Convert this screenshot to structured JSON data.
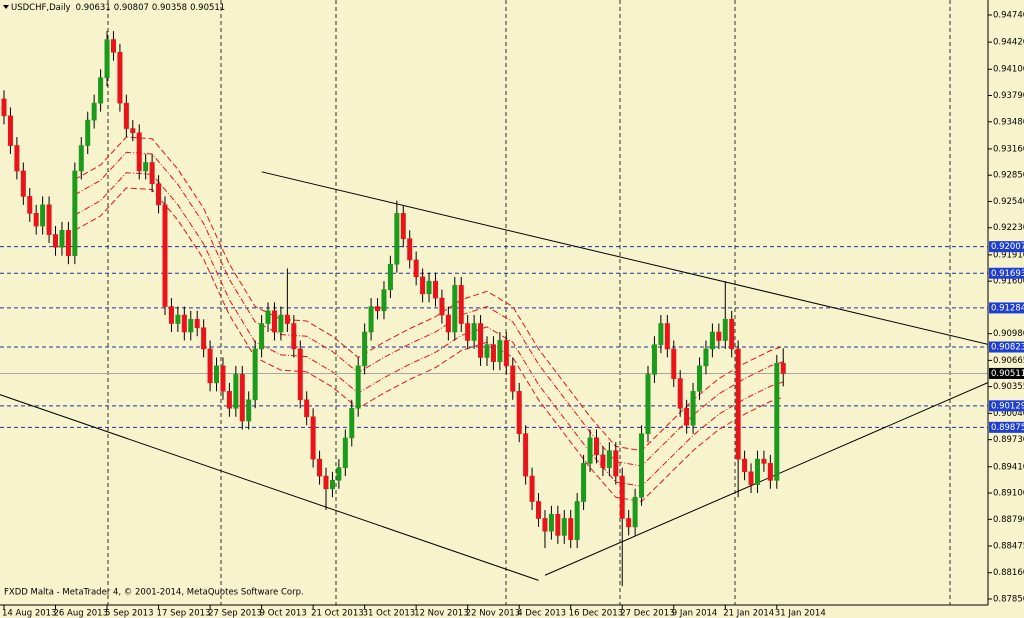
{
  "chart_data": {
    "type": "candlestick",
    "symbol": "USDCHF,Daily",
    "footer": "FXDD Malta - MetaTrader 4, © 2001-2014, MetaQuotes Software Corp.",
    "categories": [
      "14 Aug 2013",
      null,
      null,
      null,
      null,
      null,
      null,
      null,
      "26 Aug 2013",
      null,
      null,
      null,
      null,
      null,
      null,
      null,
      "5 Sep 2013",
      null,
      null,
      null,
      null,
      null,
      null,
      null,
      "17 Sep 2013",
      null,
      null,
      null,
      null,
      null,
      null,
      null,
      "27 Sep 2013",
      null,
      null,
      null,
      null,
      null,
      null,
      null,
      "9 Oct 2013",
      null,
      null,
      null,
      null,
      null,
      null,
      null,
      "21 Oct 2013",
      null,
      null,
      null,
      null,
      null,
      null,
      null,
      "31 Oct 2013",
      null,
      null,
      null,
      null,
      null,
      null,
      null,
      "12 Nov 2013",
      null,
      null,
      null,
      null,
      null,
      null,
      null,
      "22 Nov 2013",
      null,
      null,
      null,
      null,
      null,
      null,
      null,
      "4 Dec 2013",
      null,
      null,
      null,
      null,
      null,
      null,
      null,
      "16 Dec 2013",
      null,
      null,
      null,
      null,
      null,
      null,
      null,
      "27 Dec 2013",
      null,
      null,
      null,
      null,
      null,
      null,
      null,
      "9 Jan 2014",
      null,
      null,
      null,
      null,
      null,
      null,
      null,
      "21 Jan 2014",
      null,
      null,
      null,
      null,
      null,
      null,
      null,
      "31 Jan 2014",
      null
    ],
    "open": [
      0.9375,
      0.9355,
      0.932,
      0.929,
      0.926,
      0.924,
      0.9225,
      0.925,
      0.9215,
      0.92,
      0.922,
      0.919,
      0.929,
      0.932,
      0.935,
      0.937,
      0.94,
      0.9445,
      0.943,
      0.937,
      0.934,
      0.9335,
      0.929,
      0.93,
      0.9275,
      0.925,
      0.913,
      0.911,
      0.912,
      0.91,
      0.9115,
      0.9105,
      0.908,
      0.904,
      0.906,
      0.903,
      0.901,
      0.905,
      0.8995,
      0.902,
      0.908,
      0.911,
      0.9125,
      0.91,
      0.912,
      0.911,
      0.908,
      0.902,
      0.9,
      0.895,
      0.893,
      0.8915,
      0.8925,
      0.894,
      0.8975,
      0.901,
      0.906,
      0.91,
      0.913,
      0.9125,
      0.915,
      0.918,
      0.924,
      0.921,
      0.9185,
      0.9165,
      0.9145,
      0.916,
      0.914,
      0.912,
      0.91,
      0.9155,
      0.911,
      0.909,
      0.911,
      0.907,
      0.9085,
      0.9065,
      0.909,
      0.906,
      0.903,
      0.898,
      0.893,
      0.89,
      0.888,
      0.8865,
      0.8885,
      0.886,
      0.888,
      0.8855,
      0.89,
      0.8945,
      0.8975,
      0.8955,
      0.894,
      0.896,
      0.893,
      0.888,
      0.887,
      0.8905,
      0.898,
      0.905,
      0.9085,
      0.911,
      0.908,
      0.9045,
      0.901,
      0.899,
      0.903,
      0.906,
      0.908,
      0.91,
      0.909,
      0.9115,
      0.908,
      0.895,
      0.8935,
      0.892,
      0.895,
      0.8945,
      0.8925,
      0.90631
    ],
    "high": [
      0.9385,
      0.9365,
      0.933,
      0.93,
      0.927,
      0.925,
      0.926,
      0.926,
      0.9225,
      0.923,
      0.923,
      0.93,
      0.933,
      0.936,
      0.938,
      0.941,
      0.9455,
      0.9455,
      0.944,
      0.938,
      0.935,
      0.9345,
      0.931,
      0.931,
      0.9285,
      0.926,
      0.914,
      0.913,
      0.913,
      0.9125,
      0.9125,
      0.9115,
      0.909,
      0.907,
      0.907,
      0.904,
      0.906,
      0.906,
      0.903,
      0.909,
      0.912,
      0.9135,
      0.9135,
      0.913,
      0.9175,
      0.912,
      0.909,
      0.903,
      0.901,
      0.896,
      0.894,
      0.8935,
      0.895,
      0.8985,
      0.902,
      0.907,
      0.911,
      0.914,
      0.914,
      0.916,
      0.919,
      0.9255,
      0.925,
      0.922,
      0.9195,
      0.9175,
      0.917,
      0.917,
      0.915,
      0.913,
      0.9165,
      0.9165,
      0.912,
      0.912,
      0.912,
      0.9095,
      0.9095,
      0.91,
      0.91,
      0.907,
      0.904,
      0.899,
      0.894,
      0.891,
      0.889,
      0.8895,
      0.8895,
      0.889,
      0.889,
      0.891,
      0.8955,
      0.8985,
      0.8985,
      0.8965,
      0.897,
      0.897,
      0.894,
      0.889,
      0.8915,
      0.899,
      0.906,
      0.9095,
      0.912,
      0.912,
      0.909,
      0.9055,
      0.902,
      0.904,
      0.907,
      0.909,
      0.911,
      0.911,
      0.916,
      0.9125,
      0.909,
      0.896,
      0.8945,
      0.896,
      0.896,
      0.8955,
      0.9073,
      0.90807
    ],
    "low": [
      0.9345,
      0.931,
      0.928,
      0.925,
      0.923,
      0.9215,
      0.9215,
      0.9205,
      0.919,
      0.919,
      0.918,
      0.918,
      0.928,
      0.931,
      0.934,
      0.936,
      0.939,
      0.942,
      0.936,
      0.933,
      0.9325,
      0.928,
      0.928,
      0.9265,
      0.924,
      0.912,
      0.91,
      0.91,
      0.909,
      0.909,
      0.9095,
      0.907,
      0.903,
      0.903,
      0.902,
      0.9,
      0.9,
      0.8985,
      0.8985,
      0.901,
      0.907,
      0.91,
      0.909,
      0.909,
      0.91,
      0.907,
      0.901,
      0.899,
      0.894,
      0.892,
      0.889,
      0.8905,
      0.8915,
      0.893,
      0.8965,
      0.9,
      0.905,
      0.909,
      0.9115,
      0.9115,
      0.914,
      0.917,
      0.92,
      0.9175,
      0.9155,
      0.9135,
      0.9135,
      0.913,
      0.911,
      0.909,
      0.909,
      0.91,
      0.908,
      0.908,
      0.906,
      0.906,
      0.9055,
      0.9055,
      0.905,
      0.902,
      0.897,
      0.892,
      0.889,
      0.887,
      0.8845,
      0.8855,
      0.885,
      0.885,
      0.8845,
      0.8845,
      0.889,
      0.8935,
      0.8945,
      0.893,
      0.893,
      0.892,
      0.88,
      0.886,
      0.886,
      0.8895,
      0.897,
      0.904,
      0.9075,
      0.907,
      0.9035,
      0.9,
      0.898,
      0.898,
      0.902,
      0.905,
      0.907,
      0.908,
      0.908,
      0.907,
      0.8905,
      0.8925,
      0.891,
      0.891,
      0.8935,
      0.8915,
      0.8915,
      0.90358
    ],
    "close": [
      0.9355,
      0.932,
      0.929,
      0.926,
      0.924,
      0.9225,
      0.925,
      0.9215,
      0.92,
      0.922,
      0.919,
      0.929,
      0.932,
      0.935,
      0.937,
      0.94,
      0.9445,
      0.943,
      0.937,
      0.934,
      0.9335,
      0.929,
      0.93,
      0.9275,
      0.925,
      0.913,
      0.911,
      0.912,
      0.91,
      0.9115,
      0.9105,
      0.908,
      0.904,
      0.906,
      0.903,
      0.901,
      0.905,
      0.8995,
      0.902,
      0.908,
      0.911,
      0.9125,
      0.91,
      0.912,
      0.911,
      0.908,
      0.902,
      0.9,
      0.895,
      0.893,
      0.8915,
      0.8925,
      0.894,
      0.8975,
      0.901,
      0.906,
      0.91,
      0.913,
      0.9125,
      0.915,
      0.918,
      0.924,
      0.921,
      0.9185,
      0.9165,
      0.9145,
      0.916,
      0.914,
      0.912,
      0.91,
      0.9155,
      0.911,
      0.909,
      0.911,
      0.907,
      0.9085,
      0.9065,
      0.909,
      0.906,
      0.903,
      0.898,
      0.893,
      0.89,
      0.888,
      0.8865,
      0.8885,
      0.886,
      0.888,
      0.8855,
      0.89,
      0.8945,
      0.8975,
      0.8955,
      0.894,
      0.896,
      0.893,
      0.888,
      0.887,
      0.8905,
      0.898,
      0.905,
      0.9085,
      0.911,
      0.908,
      0.9045,
      0.901,
      0.899,
      0.903,
      0.906,
      0.908,
      0.91,
      0.909,
      0.9115,
      0.908,
      0.895,
      0.8935,
      0.892,
      0.895,
      0.8945,
      0.8925,
      0.9063,
      0.90511
    ],
    "up_color": "#1c9a1c",
    "down_color": "#e8141a",
    "ylim": [
      0.87779,
      0.94917
    ],
    "yticks": [
      {
        "value": 0.9474,
        "label": "0.94740"
      },
      {
        "value": 0.9442,
        "label": "0.94420"
      },
      {
        "value": 0.941,
        "label": "0.94100"
      },
      {
        "value": 0.9379,
        "label": "0.93790"
      },
      {
        "value": 0.9348,
        "label": "0.93480"
      },
      {
        "value": 0.9316,
        "label": "0.93160"
      },
      {
        "value": 0.9285,
        "label": "0.92850"
      },
      {
        "value": 0.9254,
        "label": "0.92540"
      },
      {
        "value": 0.9223,
        "label": "0.92230"
      },
      {
        "value": 0.9191,
        "label": "0.91910"
      },
      {
        "value": 0.916,
        "label": "0.91600"
      },
      {
        "value": 0.9098,
        "label": "0.90980"
      },
      0.90665,
      {
        "value": 0.90355,
        "label": "0.90355"
      },
      {
        "value": 0.9004,
        "label": "0.90040"
      },
      {
        "value": 0.8973,
        "label": "0.89730"
      },
      {
        "value": 0.8941,
        "label": "0.89410"
      },
      {
        "value": 0.891,
        "label": "0.89100"
      },
      {
        "value": 0.8879,
        "label": "0.88790"
      },
      0.88475,
      {
        "value": 0.8816,
        "label": "0.88160"
      },
      {
        "value": 0.8785,
        "label": "0.87850"
      }
    ],
    "levels": [
      0.92007,
      0.91693,
      0.91284,
      0.90823,
      0.90129,
      0.89875
    ],
    "level_color": "#1e2f9e",
    "level_label_color": "#1f3fd0",
    "envelopes": {
      "color": "#e8141a",
      "x": [
        11,
        15,
        19,
        23,
        27,
        31,
        35,
        39,
        43,
        47,
        51,
        55,
        59,
        63,
        67,
        71,
        75,
        79,
        83,
        87,
        91,
        95,
        99,
        103,
        107,
        111,
        115,
        119,
        121
      ],
      "lines": [
        [
          0.928,
          0.9297,
          0.933,
          0.9328,
          0.9292,
          0.9246,
          0.918,
          0.913,
          0.9115,
          0.9113,
          0.9095,
          0.907,
          0.9088,
          0.9104,
          0.9118,
          0.9138,
          0.9148,
          0.913,
          0.908,
          0.904,
          0.9,
          0.8965,
          0.896,
          0.899,
          0.902,
          0.9045,
          0.9063,
          0.9078,
          0.9083
        ],
        [
          0.9262,
          0.9279,
          0.9312,
          0.931,
          0.9274,
          0.9228,
          0.9162,
          0.9112,
          0.9097,
          0.9095,
          0.9077,
          0.9052,
          0.907,
          0.9086,
          0.91,
          0.912,
          0.913,
          0.9112,
          0.9062,
          0.9022,
          0.8982,
          0.8947,
          0.8942,
          0.8972,
          0.9002,
          0.9027,
          0.9045,
          0.906,
          0.9065
        ],
        [
          0.9238,
          0.9255,
          0.9288,
          0.9286,
          0.925,
          0.9204,
          0.9138,
          0.9088,
          0.9073,
          0.9071,
          0.9053,
          0.9028,
          0.9046,
          0.9062,
          0.9076,
          0.9096,
          0.9106,
          0.9088,
          0.9038,
          0.8998,
          0.8958,
          0.8923,
          0.8918,
          0.8948,
          0.8978,
          0.9003,
          0.9021,
          0.9036,
          0.9041
        ],
        [
          0.922,
          0.9237,
          0.927,
          0.9268,
          0.9232,
          0.9186,
          0.912,
          0.907,
          0.9055,
          0.9053,
          0.9035,
          0.901,
          0.9028,
          0.9044,
          0.9058,
          0.9078,
          0.9088,
          0.907,
          0.902,
          0.898,
          0.894,
          0.8905,
          0.89,
          0.893,
          0.896,
          0.8985,
          0.9003,
          0.9018,
          0.9023
        ]
      ]
    },
    "trendlines": [
      {
        "x": [
          40,
          153
        ],
        "values": [
          0.9289,
          0.9085
        ]
      },
      {
        "x": [
          -1,
          83
        ],
        "values": [
          0.9027,
          0.8807
        ]
      },
      {
        "x": [
          84,
          153
        ],
        "values": [
          0.8813,
          0.9041
        ]
      }
    ]
  }
}
